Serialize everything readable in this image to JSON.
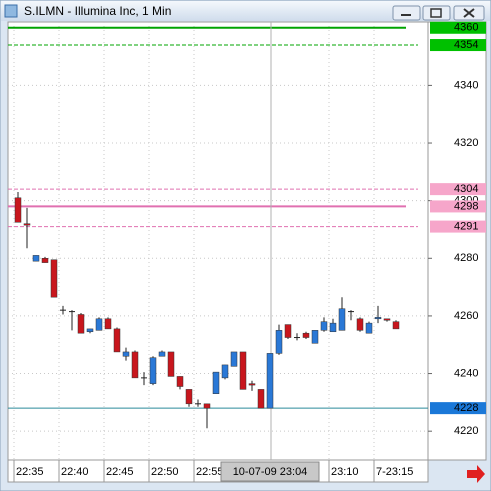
{
  "chart_data": {
    "type": "candlestick",
    "title": "S.ILMN - Illumina Inc, 1 Min",
    "categories": [
      "22:35",
      null,
      null,
      null,
      null,
      "22:40",
      null,
      null,
      null,
      null,
      "22:45",
      null,
      null,
      null,
      null,
      "22:50",
      null,
      null,
      null,
      null,
      "22:55",
      null,
      null,
      null,
      null,
      null,
      null,
      null,
      null,
      null,
      null,
      null,
      null,
      null,
      null,
      "23:10",
      null,
      null,
      null,
      null,
      "7-23:15",
      null,
      null
    ],
    "open": [
      4301,
      4292,
      4279,
      4280,
      4279.5,
      4262,
      4261.5,
      4260.5,
      4254.5,
      4255,
      4259,
      4255.5,
      4246,
      4247.5,
      4238.5,
      4236.5,
      4246,
      4247.5,
      4239,
      4234.5,
      4229.5,
      4229.5,
      4233,
      4238.5,
      4242.5,
      4247.5,
      4236.5,
      4234.5,
      4228,
      4247,
      4257,
      4252.5,
      4254,
      4250.5,
      4255,
      4254.5,
      4255,
      4261.5,
      4259,
      4254,
      4259,
      4259,
      4258
    ],
    "high": [
      4303,
      4297.5,
      4281,
      4280.5,
      4279.5,
      4263.5,
      4262,
      4261,
      4255.5,
      4259.5,
      4259.5,
      4256,
      4249,
      4248,
      4240.5,
      4246,
      4248,
      4247.5,
      4239,
      4234.5,
      4231,
      4229.5,
      4240.5,
      4243,
      4247.5,
      4247.5,
      4237.5,
      4234.5,
      4247,
      4257,
      4257,
      4254,
      4254.5,
      4255,
      4259.5,
      4259,
      4266.5,
      4262,
      4259.5,
      4258,
      4263.5,
      4259,
      4258.5
    ],
    "low": [
      4292.5,
      4283.5,
      4279,
      4278.5,
      4266.5,
      4260.5,
      4255,
      4254,
      4254,
      4255,
      4255.5,
      4247.5,
      4244.5,
      4238.5,
      4236,
      4236,
      4246,
      4239,
      4234.5,
      4228.5,
      4228.5,
      4221,
      4233,
      4238,
      4242.5,
      4234.5,
      4234,
      4228,
      4228,
      4246.5,
      4252,
      4251.5,
      4252,
      4250.5,
      4254.5,
      4254.5,
      4255,
      4258.5,
      4254.5,
      4254,
      4257.5,
      4258,
      4255.5
    ],
    "close": [
      4292.5,
      4291.5,
      4281,
      4278.5,
      4266.5,
      4262,
      4261.5,
      4254,
      4255.5,
      4259,
      4255.5,
      4247.5,
      4247.5,
      4238.5,
      4238.5,
      4245.5,
      4247.5,
      4239,
      4235.5,
      4229.5,
      4229.5,
      4228,
      4240.5,
      4243,
      4247.5,
      4234.5,
      4236,
      4228,
      4247,
      4255,
      4252.5,
      4252.5,
      4252.5,
      4255,
      4258,
      4257.5,
      4262.5,
      4261.5,
      4255,
      4257.5,
      4259.5,
      4258.5,
      4255.5
    ],
    "up_color": "#2a78d6",
    "down_color": "#c8161d",
    "ylim": [
      4210,
      4362
    ],
    "yticks": [
      4220,
      4240,
      4260,
      4280,
      4300,
      4320,
      4340
    ],
    "grid": true,
    "levels": [
      {
        "value": 4360,
        "color": "#00a400",
        "style": "solid",
        "label_color": "#00c000"
      },
      {
        "value": 4354,
        "color": "#00a400",
        "style": "dashed",
        "label_color": "#00c000"
      },
      {
        "value": 4304,
        "color": "#e070b0",
        "style": "dashed",
        "label_color": "#f6a6ca"
      },
      {
        "value": 4298,
        "color": "#e070b0",
        "style": "solid",
        "label_color": "#f6a6ca"
      },
      {
        "value": 4291,
        "color": "#e070b0",
        "style": "dashed",
        "label_color": "#f6a6ca"
      },
      {
        "value": 4228,
        "color": "#2a8a9a",
        "style": "solid",
        "label_color": "#1a78d8"
      }
    ],
    "crosshair_label": "10-07-09 23:04"
  }
}
